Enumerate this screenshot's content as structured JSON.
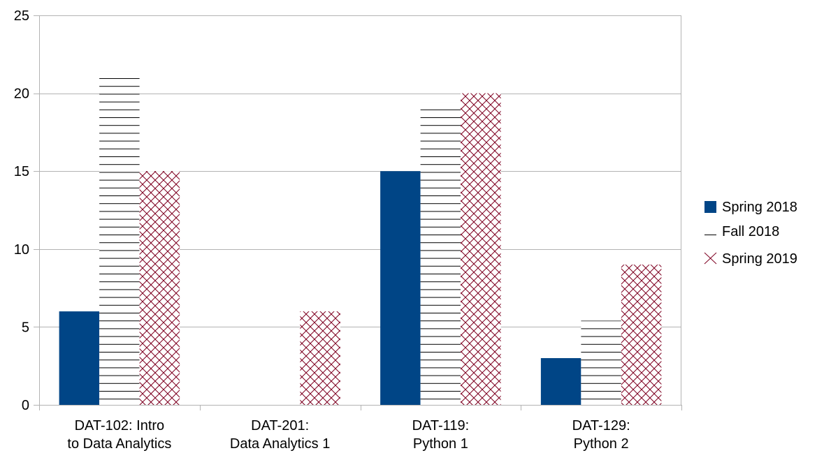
{
  "chart_data": {
    "type": "bar",
    "title": "",
    "xlabel": "",
    "ylabel": "",
    "ylim": [
      0,
      25
    ],
    "yticks": [
      0,
      5,
      10,
      15,
      20,
      25
    ],
    "grid": true,
    "legend_position": "right",
    "categories": [
      [
        "DAT-102: Intro",
        "to Data Analytics"
      ],
      [
        "DAT-201:",
        "Data Analytics 1"
      ],
      [
        "DAT-119:",
        "Python 1"
      ],
      [
        "DAT-129:",
        "Python 2"
      ]
    ],
    "series": [
      {
        "name": "Spring 2018",
        "values": [
          6,
          0,
          15,
          3
        ],
        "color": "#004586",
        "pattern": "solid"
      },
      {
        "name": "Fall 2018",
        "values": [
          21.4,
          0,
          19.4,
          5.4
        ],
        "color": "#000000",
        "pattern": "horizontal-lines"
      },
      {
        "name": "Spring 2019",
        "values": [
          15,
          6,
          20,
          9
        ],
        "color": "#7e0021",
        "pattern": "crosshatch"
      }
    ]
  }
}
